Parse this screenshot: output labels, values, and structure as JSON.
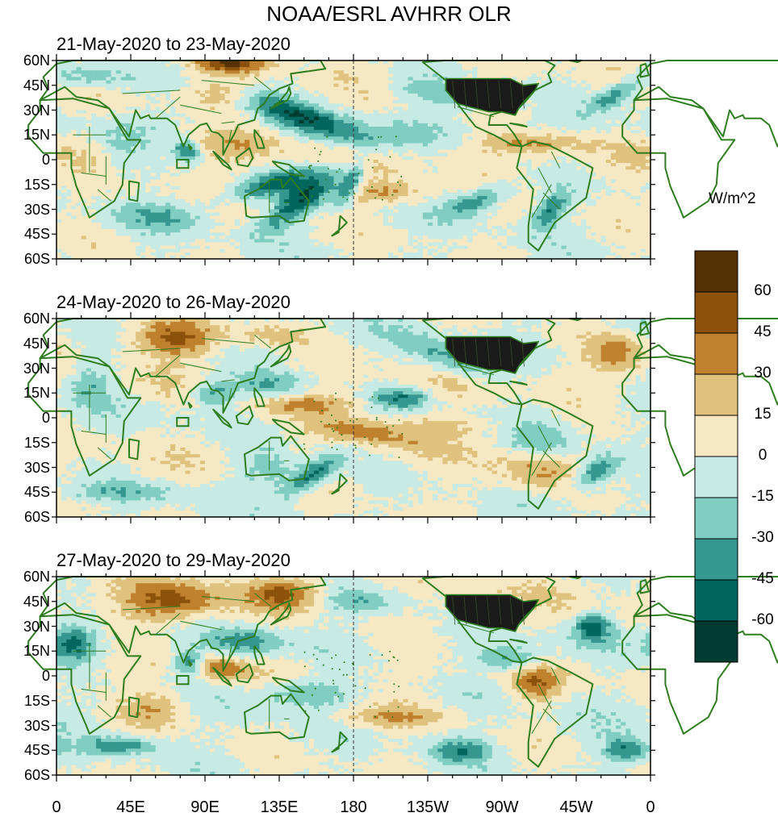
{
  "title": "NOAA/ESRL AVHRR OLR",
  "colorbar": {
    "units": "W/m^2",
    "tick_labels": [
      "60",
      "45",
      "30",
      "15",
      "0",
      "-15",
      "-30",
      "-45",
      "-60"
    ],
    "colors": [
      "#543005",
      "#8c510a",
      "#bf812d",
      "#dfc27d",
      "#f6e8c3",
      "#c7eae5",
      "#80cdc1",
      "#35978f",
      "#01665e",
      "#003c30"
    ],
    "levels_low_to_high": [
      -60,
      -45,
      -30,
      -15,
      0,
      15,
      30,
      45,
      60
    ]
  },
  "axes": {
    "lat_labels": [
      "60N",
      "45N",
      "30N",
      "15N",
      "0",
      "15S",
      "30S",
      "45S",
      "60S"
    ],
    "lon_labels": [
      "0",
      "45E",
      "90E",
      "135E",
      "180",
      "135W",
      "90W",
      "45W",
      "0"
    ]
  },
  "panels": [
    {
      "title": "21-May-2020 to 23-May-2020"
    },
    {
      "title": "24-May-2020 to 26-May-2020"
    },
    {
      "title": "27-May-2020 to 29-May-2020"
    }
  ],
  "colors": {
    "coastline": "#2e7d1e",
    "frame": "#000000"
  }
}
